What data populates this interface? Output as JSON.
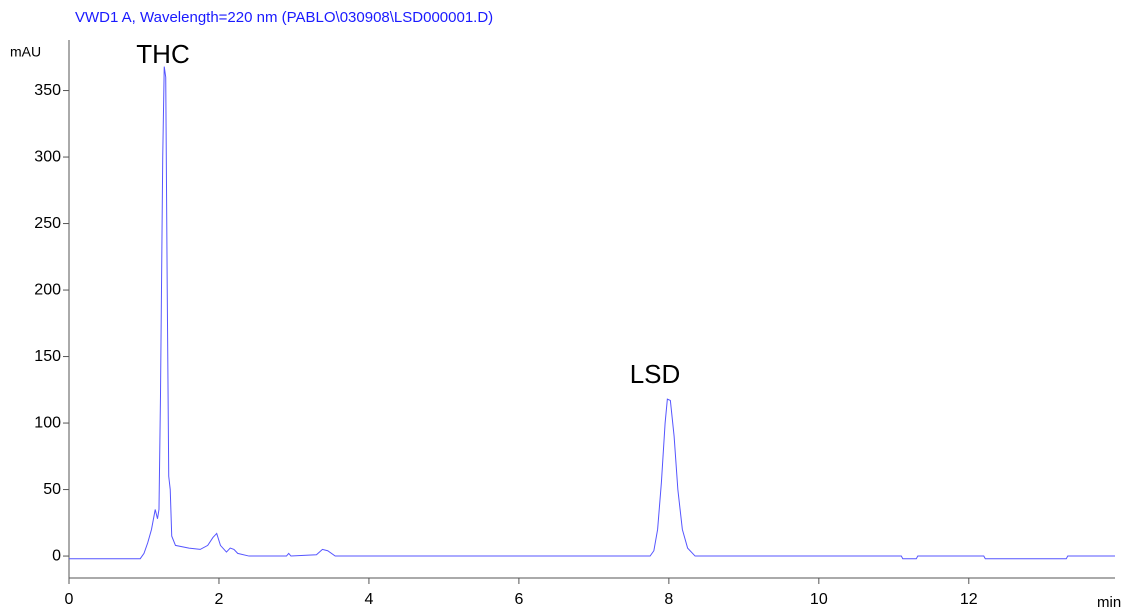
{
  "chart_data": {
    "type": "line",
    "title": "VWD1 A, Wavelength=220 nm (PABLO\\030908\\LSD000001.D)",
    "y_label": "mAU",
    "x_label": "min",
    "annotations": [
      "THC",
      "LSD"
    ],
    "xlim": [
      0,
      13.95
    ],
    "ylim": [
      -16.5,
      388
    ],
    "xticks": [
      0,
      2,
      4,
      6,
      8,
      10,
      12
    ],
    "yticks": [
      0,
      50,
      100,
      150,
      200,
      250,
      300,
      350
    ],
    "series": [
      {
        "color": "#5555ff",
        "x": [
          0,
          0.95,
          1.0,
          1.05,
          1.1,
          1.15,
          1.18,
          1.2,
          1.22,
          1.25,
          1.27,
          1.29,
          1.31,
          1.33,
          1.35,
          1.37,
          1.42,
          1.6,
          1.75,
          1.85,
          1.92,
          1.97,
          2.02,
          2.1,
          2.15,
          2.2,
          2.25,
          2.4,
          2.9,
          2.93,
          2.96,
          3.3,
          3.38,
          3.45,
          3.55,
          7.75,
          7.8,
          7.85,
          7.9,
          7.95,
          7.98,
          8.02,
          8.07,
          8.12,
          8.18,
          8.25,
          8.35,
          11.1,
          11.12,
          11.3,
          11.32,
          12.2,
          12.22,
          13.3,
          13.32,
          13.95
        ],
        "values": [
          -2,
          -2,
          2,
          10,
          20,
          35,
          28,
          35,
          120,
          300,
          368,
          360,
          200,
          60,
          50,
          15,
          8,
          6,
          5,
          8,
          14,
          17,
          8,
          3,
          6,
          5,
          2,
          0,
          0,
          2,
          0,
          1,
          5,
          4,
          0,
          0,
          4,
          20,
          55,
          100,
          118,
          117,
          90,
          50,
          20,
          6,
          0,
          0,
          -2,
          -2,
          0,
          0,
          -2,
          -2,
          0,
          0
        ]
      }
    ]
  }
}
